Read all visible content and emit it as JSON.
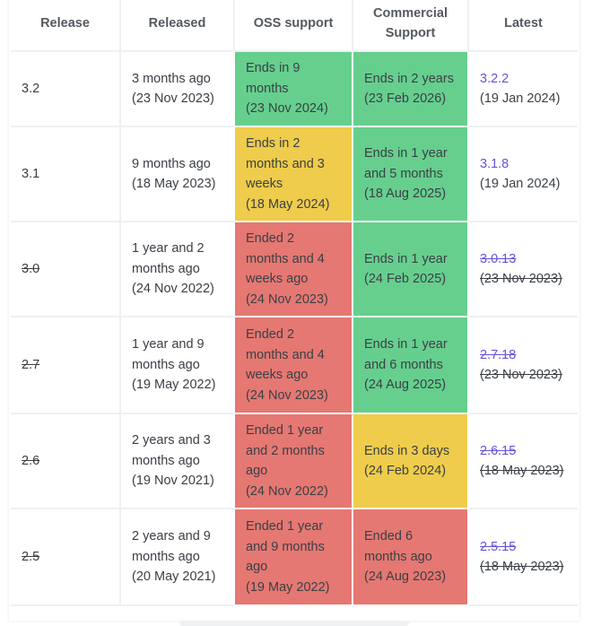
{
  "headers": {
    "release": "Release",
    "released": "Released",
    "oss": "OSS support",
    "commercial": "Commercial Support",
    "latest": "Latest"
  },
  "colors": {
    "active": "#66cf8e",
    "warning": "#efcc4b",
    "ended": "#e57872",
    "link": "#6b4fd9"
  },
  "rows": [
    {
      "release": "3.2",
      "released_1": "3 months ago",
      "released_2": "(23 Nov 2023)",
      "oss_1": "Ends in 9",
      "oss_2": "months",
      "oss_3": "(23 Nov 2024)",
      "com_1": "Ends in 2 years",
      "com_2": "(23 Feb 2026)",
      "latest_version": "3.2.2",
      "latest_date": "(19 Jan 2024)"
    },
    {
      "release": "3.1",
      "released_1": "9 months ago",
      "released_2": "(18 May 2023)",
      "oss_1": "Ends in 2",
      "oss_2": "months and 3",
      "oss_3": "weeks",
      "oss_4": "(18 May 2024)",
      "com_1": "Ends in 1 year",
      "com_2": "and 5 months",
      "com_3": "(18 Aug 2025)",
      "latest_version": "3.1.8",
      "latest_date": "(19 Jan 2024)"
    },
    {
      "release": "3.0",
      "released_1": "1 year and 2",
      "released_2": "months ago",
      "released_3": "(24 Nov 2022)",
      "oss_1": "Ended 2",
      "oss_2": "months and 4",
      "oss_3": "weeks ago",
      "oss_4": "(24 Nov 2023)",
      "com_1": "Ends in 1 year",
      "com_2": "(24 Feb 2025)",
      "latest_version": "3.0.13",
      "latest_date": "(23 Nov 2023)"
    },
    {
      "release": "2.7",
      "released_1": "1 year and 9",
      "released_2": "months ago",
      "released_3": "(19 May 2022)",
      "oss_1": "Ended 2",
      "oss_2": "months and 4",
      "oss_3": "weeks ago",
      "oss_4": "(24 Nov 2023)",
      "com_1": "Ends in 1 year",
      "com_2": "and 6 months",
      "com_3": "(24 Aug 2025)",
      "latest_version": "2.7.18",
      "latest_date": "(23 Nov 2023)"
    },
    {
      "release": "2.6",
      "released_1": "2 years and 3",
      "released_2": "months ago",
      "released_3": "(19 Nov 2021)",
      "oss_1": "Ended 1 year",
      "oss_2": "and 2 months",
      "oss_3": "ago",
      "oss_4": "(24 Nov 2022)",
      "com_1": "Ends in 3 days",
      "com_2": "(24 Feb 2024)",
      "latest_version": "2.6.15",
      "latest_date": "(18 May 2023)"
    },
    {
      "release": "2.5",
      "released_1": "2 years and 9",
      "released_2": "months ago",
      "released_3": "(20 May 2021)",
      "oss_1": "Ended 1 year",
      "oss_2": "and 9 months",
      "oss_3": "ago",
      "oss_4": "(19 May 2022)",
      "com_1": "Ended 6",
      "com_2": "months ago",
      "com_3": "(24 Aug 2023)",
      "latest_version": "2.5.15",
      "latest_date": "(18 May 2023)"
    }
  ]
}
